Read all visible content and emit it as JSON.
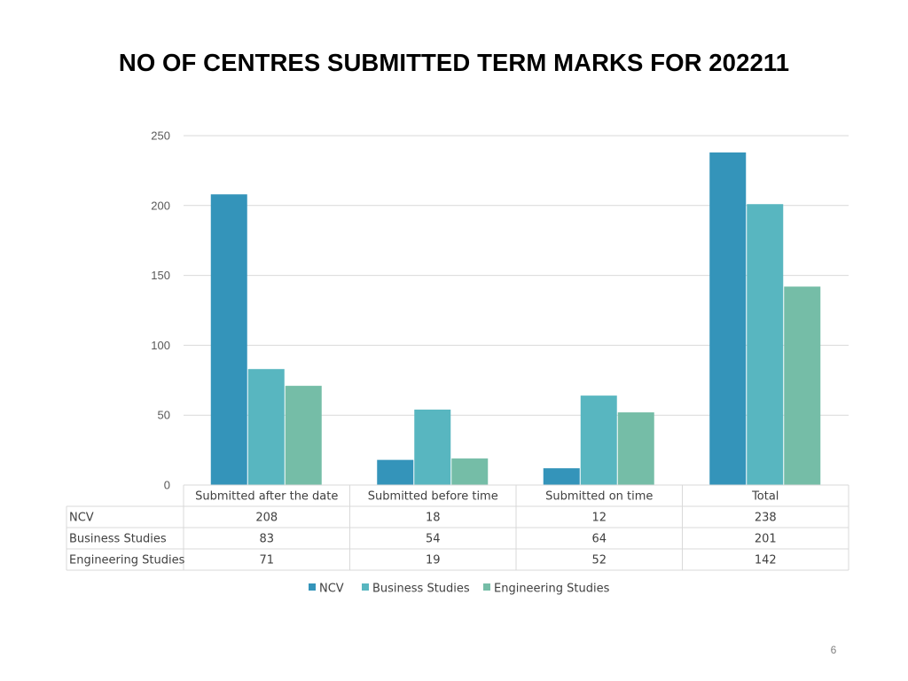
{
  "slide": {
    "title": "NO OF CENTRES SUBMITTED TERM MARKS FOR 202211",
    "page_number": "6"
  },
  "chart_data": {
    "type": "bar",
    "title": "",
    "xlabel": "",
    "ylabel": "",
    "ylim": [
      0,
      250
    ],
    "yticks": [
      0,
      50,
      100,
      150,
      200,
      250
    ],
    "grid": true,
    "legend_position": "bottom",
    "categories": [
      "Submitted after the date",
      "Submitted before time",
      "Submitted on time",
      "Total"
    ],
    "series": [
      {
        "name": "NCV",
        "values": [
          208,
          18,
          12,
          238
        ],
        "color": "#3494BA"
      },
      {
        "name": "Business Studies",
        "values": [
          83,
          54,
          64,
          201
        ],
        "color": "#58B6C0"
      },
      {
        "name": "Engineering Studies",
        "values": [
          71,
          19,
          52,
          142
        ],
        "color": "#75BDA7"
      }
    ],
    "data_table": true
  }
}
